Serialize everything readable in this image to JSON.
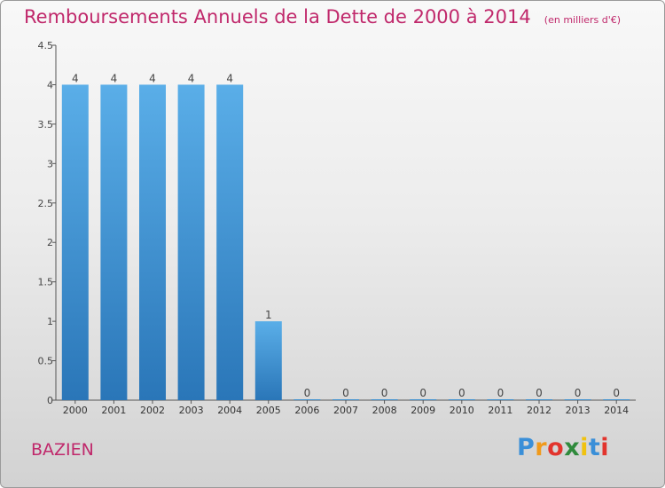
{
  "title": "Remboursements Annuels de la Dette de 2000 à 2014",
  "subtitle": "(en milliers d'€)",
  "commune": "BAZIEN",
  "logo": {
    "letters": [
      "P",
      "r",
      "o",
      "x",
      "i",
      "t",
      "i"
    ],
    "colors": [
      "#3a8fd8",
      "#f09a1b",
      "#e2342d",
      "#2f8a3c",
      "#f0c20f",
      "#3a8fd8",
      "#e2342d"
    ]
  },
  "colors": {
    "bar_top": "#5aaee8",
    "bar_bottom": "#2a76b8",
    "title": "#c0286b"
  },
  "chart_data": {
    "type": "bar",
    "title": "Remboursements Annuels de la Dette de 2000 à 2014",
    "subtitle": "(en milliers d'€)",
    "categories": [
      "2000",
      "2001",
      "2002",
      "2003",
      "2004",
      "2005",
      "2006",
      "2007",
      "2008",
      "2009",
      "2010",
      "2011",
      "2012",
      "2013",
      "2014"
    ],
    "values": [
      4,
      4,
      4,
      4,
      4,
      1,
      0,
      0,
      0,
      0,
      0,
      0,
      0,
      0,
      0
    ],
    "data_labels": [
      "4",
      "4",
      "4",
      "4",
      "4",
      "1",
      "0",
      "0",
      "0",
      "0",
      "0",
      "0",
      "0",
      "0",
      "0"
    ],
    "yticks": [
      0,
      0.5,
      1,
      1.5,
      2,
      2.5,
      3,
      3.5,
      4,
      4.5
    ],
    "ytick_labels": [
      "0",
      "0.5",
      "1",
      "1.5",
      "2",
      "2.5",
      "3",
      "3.5",
      "4",
      "4.5"
    ],
    "ylim": [
      0,
      4.5
    ],
    "xlabel": "",
    "ylabel": "",
    "grid": false,
    "legend": "none"
  }
}
